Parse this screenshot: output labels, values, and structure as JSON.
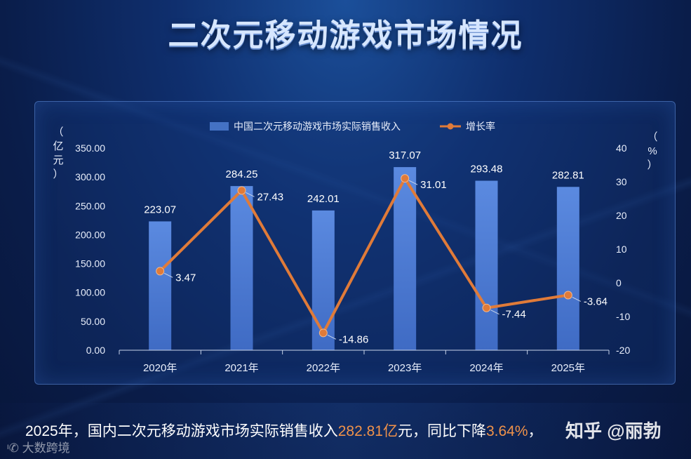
{
  "title": "二次元移动游戏市场情况",
  "chart_data": {
    "type": "bar",
    "categories": [
      "2020年",
      "2021年",
      "2022年",
      "2023年",
      "2024年",
      "2025年"
    ],
    "series": [
      {
        "name": "中国二次元移动游戏市场实际销售收入",
        "type": "bar",
        "axis": "left",
        "values": [
          223.07,
          284.25,
          242.01,
          317.07,
          293.48,
          282.81
        ],
        "labels": [
          "223.07",
          "284.25",
          "242.01",
          "317.07",
          "293.48",
          "282.81"
        ]
      },
      {
        "name": "增长率",
        "type": "line",
        "axis": "right",
        "values": [
          3.47,
          27.43,
          -14.86,
          31.01,
          -7.44,
          -3.64
        ],
        "labels": [
          "3.47",
          "27.43",
          "-14.86",
          "31.01",
          "-7.44",
          "-3.64"
        ]
      }
    ],
    "left_axis": {
      "label_chars": [
        "（",
        "亿",
        "元",
        "）"
      ],
      "ylim": [
        0,
        350
      ],
      "ticks": [
        "0.00",
        "50.00",
        "100.00",
        "150.00",
        "200.00",
        "250.00",
        "300.00",
        "350.00"
      ]
    },
    "right_axis": {
      "label_chars": [
        "（",
        "%",
        "）"
      ],
      "ylim": [
        -20,
        40
      ],
      "ticks": [
        "-20",
        "-10",
        "0",
        "10",
        "20",
        "30",
        "40"
      ]
    },
    "legend_position": "top-center",
    "colors": {
      "bar": "#4472c4",
      "line": "#e07b39"
    }
  },
  "footer": {
    "part1": "2025年，国内二次元移动游戏市场实际销售收入",
    "hl1": "282.81亿",
    "part2": "元，同比下降",
    "hl2": "3.64%",
    "part3": "，"
  },
  "source": "大数跨境",
  "watermark": "知乎 @丽勃"
}
